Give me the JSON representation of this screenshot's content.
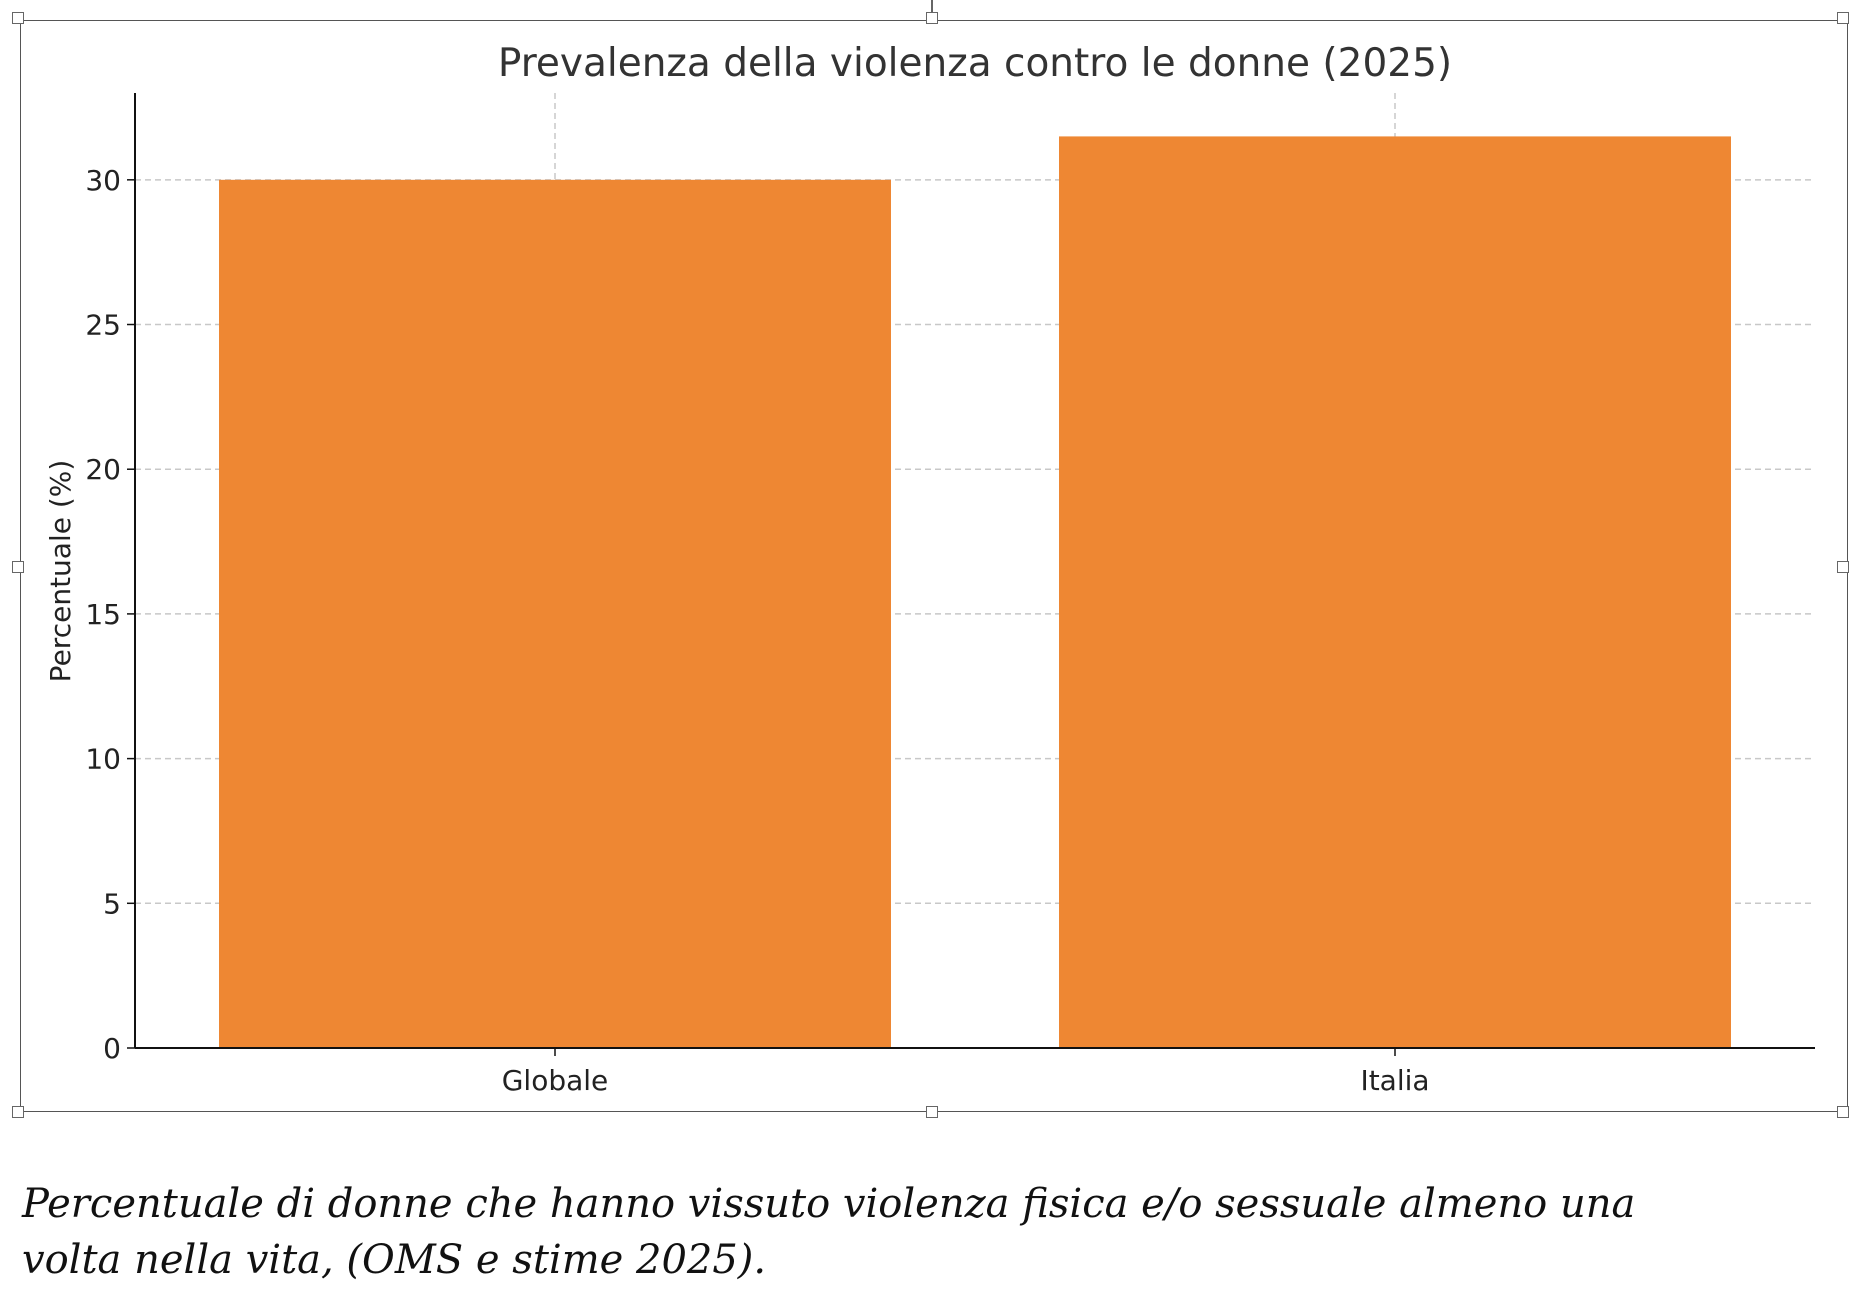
{
  "chart_data": {
    "type": "bar",
    "title": "Prevalenza della violenza contro le donne (2025)",
    "xlabel": "",
    "ylabel": "Percentuale (%)",
    "categories": [
      "Globale",
      "Italia"
    ],
    "values": [
      30,
      31.5
    ],
    "ylim": [
      0,
      33
    ],
    "yticks": [
      0,
      5,
      10,
      15,
      20,
      25,
      30
    ],
    "grid": true,
    "bar_color": "#EE8733"
  },
  "caption": "Percentuale di donne che hanno vissuto violenza fisica e/o sessuale almeno una volta nella vita, (OMS e stime 2025)."
}
